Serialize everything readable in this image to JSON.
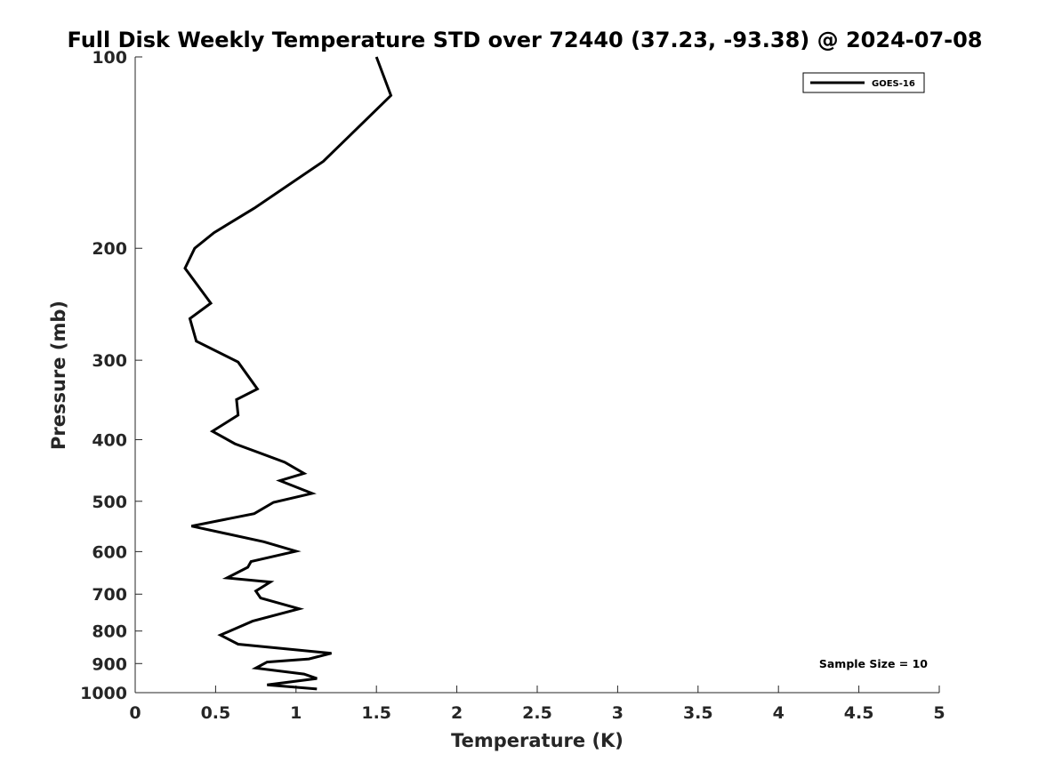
{
  "chart_data": {
    "type": "line",
    "title": "Full Disk Weekly Temperature STD over 72440 (37.23, -93.38) @ 2024-07-08",
    "xlabel": "Temperature (K)",
    "ylabel": "Pressure (mb)",
    "xlim": [
      0,
      5
    ],
    "ylim": [
      100,
      1000
    ],
    "y_scale": "log",
    "y_reversed": true,
    "grid": false,
    "legend_position": "top-right",
    "x_ticks": [
      "0",
      "0.5",
      "1",
      "1.5",
      "2",
      "2.5",
      "3",
      "3.5",
      "4",
      "4.5",
      "5"
    ],
    "y_ticks": [
      "100",
      "200",
      "300",
      "400",
      "500",
      "600",
      "700",
      "800",
      "900",
      "1000"
    ],
    "series": [
      {
        "name": "GOES-16",
        "color": "#000000",
        "x": [
          1.5,
          1.59,
          1.17,
          0.74,
          0.49,
          0.37,
          0.31,
          0.47,
          0.34,
          0.38,
          0.64,
          0.76,
          0.63,
          0.64,
          0.48,
          0.62,
          0.93,
          1.05,
          0.9,
          1.1,
          0.86,
          0.74,
          0.35,
          0.8,
          1.0,
          0.72,
          0.7,
          0.57,
          0.84,
          0.75,
          0.78,
          1.02,
          0.73,
          0.53,
          0.64,
          1.22,
          1.08,
          0.82,
          0.75,
          1.05,
          1.13,
          0.82,
          1.13
        ],
        "y": [
          100,
          115,
          146,
          173,
          189,
          200,
          215,
          244,
          258,
          280,
          302,
          333,
          346,
          366,
          388,
          406,
          434,
          452,
          464,
          486,
          502,
          523,
          547,
          579,
          599,
          622,
          635,
          660,
          670,
          692,
          710,
          738,
          772,
          812,
          839,
          867,
          885,
          895,
          915,
          935,
          950,
          972,
          987
        ]
      }
    ],
    "annotation": "Sample Size = 10"
  }
}
